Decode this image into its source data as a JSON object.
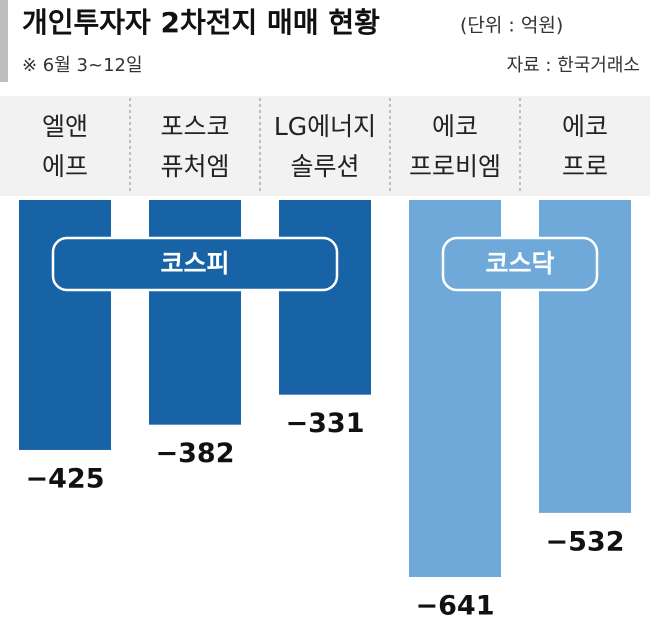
{
  "title": "개인투자자 2차전지 매매 현황",
  "unit": "(단위 : 억원)",
  "note": "※ 6월 3~12일",
  "source": "자료 : 한국거래소",
  "chart_data": {
    "type": "bar",
    "categories": [
      [
        "엘앤",
        "에프"
      ],
      [
        "포스코",
        "퓨처엠"
      ],
      [
        "LG에너지",
        "솔루션"
      ],
      [
        "에코",
        "프로비엠"
      ],
      [
        "에코",
        "프로"
      ]
    ],
    "series": [
      {
        "name": "코스피",
        "color": "#1763a6",
        "values": [
          -425,
          -382,
          -331,
          null,
          null
        ],
        "value_labels": [
          "−425",
          "−382",
          "−331",
          null,
          null
        ]
      },
      {
        "name": "코스닥",
        "color": "#6ea9d9",
        "values": [
          null,
          null,
          null,
          -641,
          -532
        ],
        "value_labels": [
          null,
          null,
          null,
          "−641",
          "−532"
        ]
      }
    ]
  }
}
